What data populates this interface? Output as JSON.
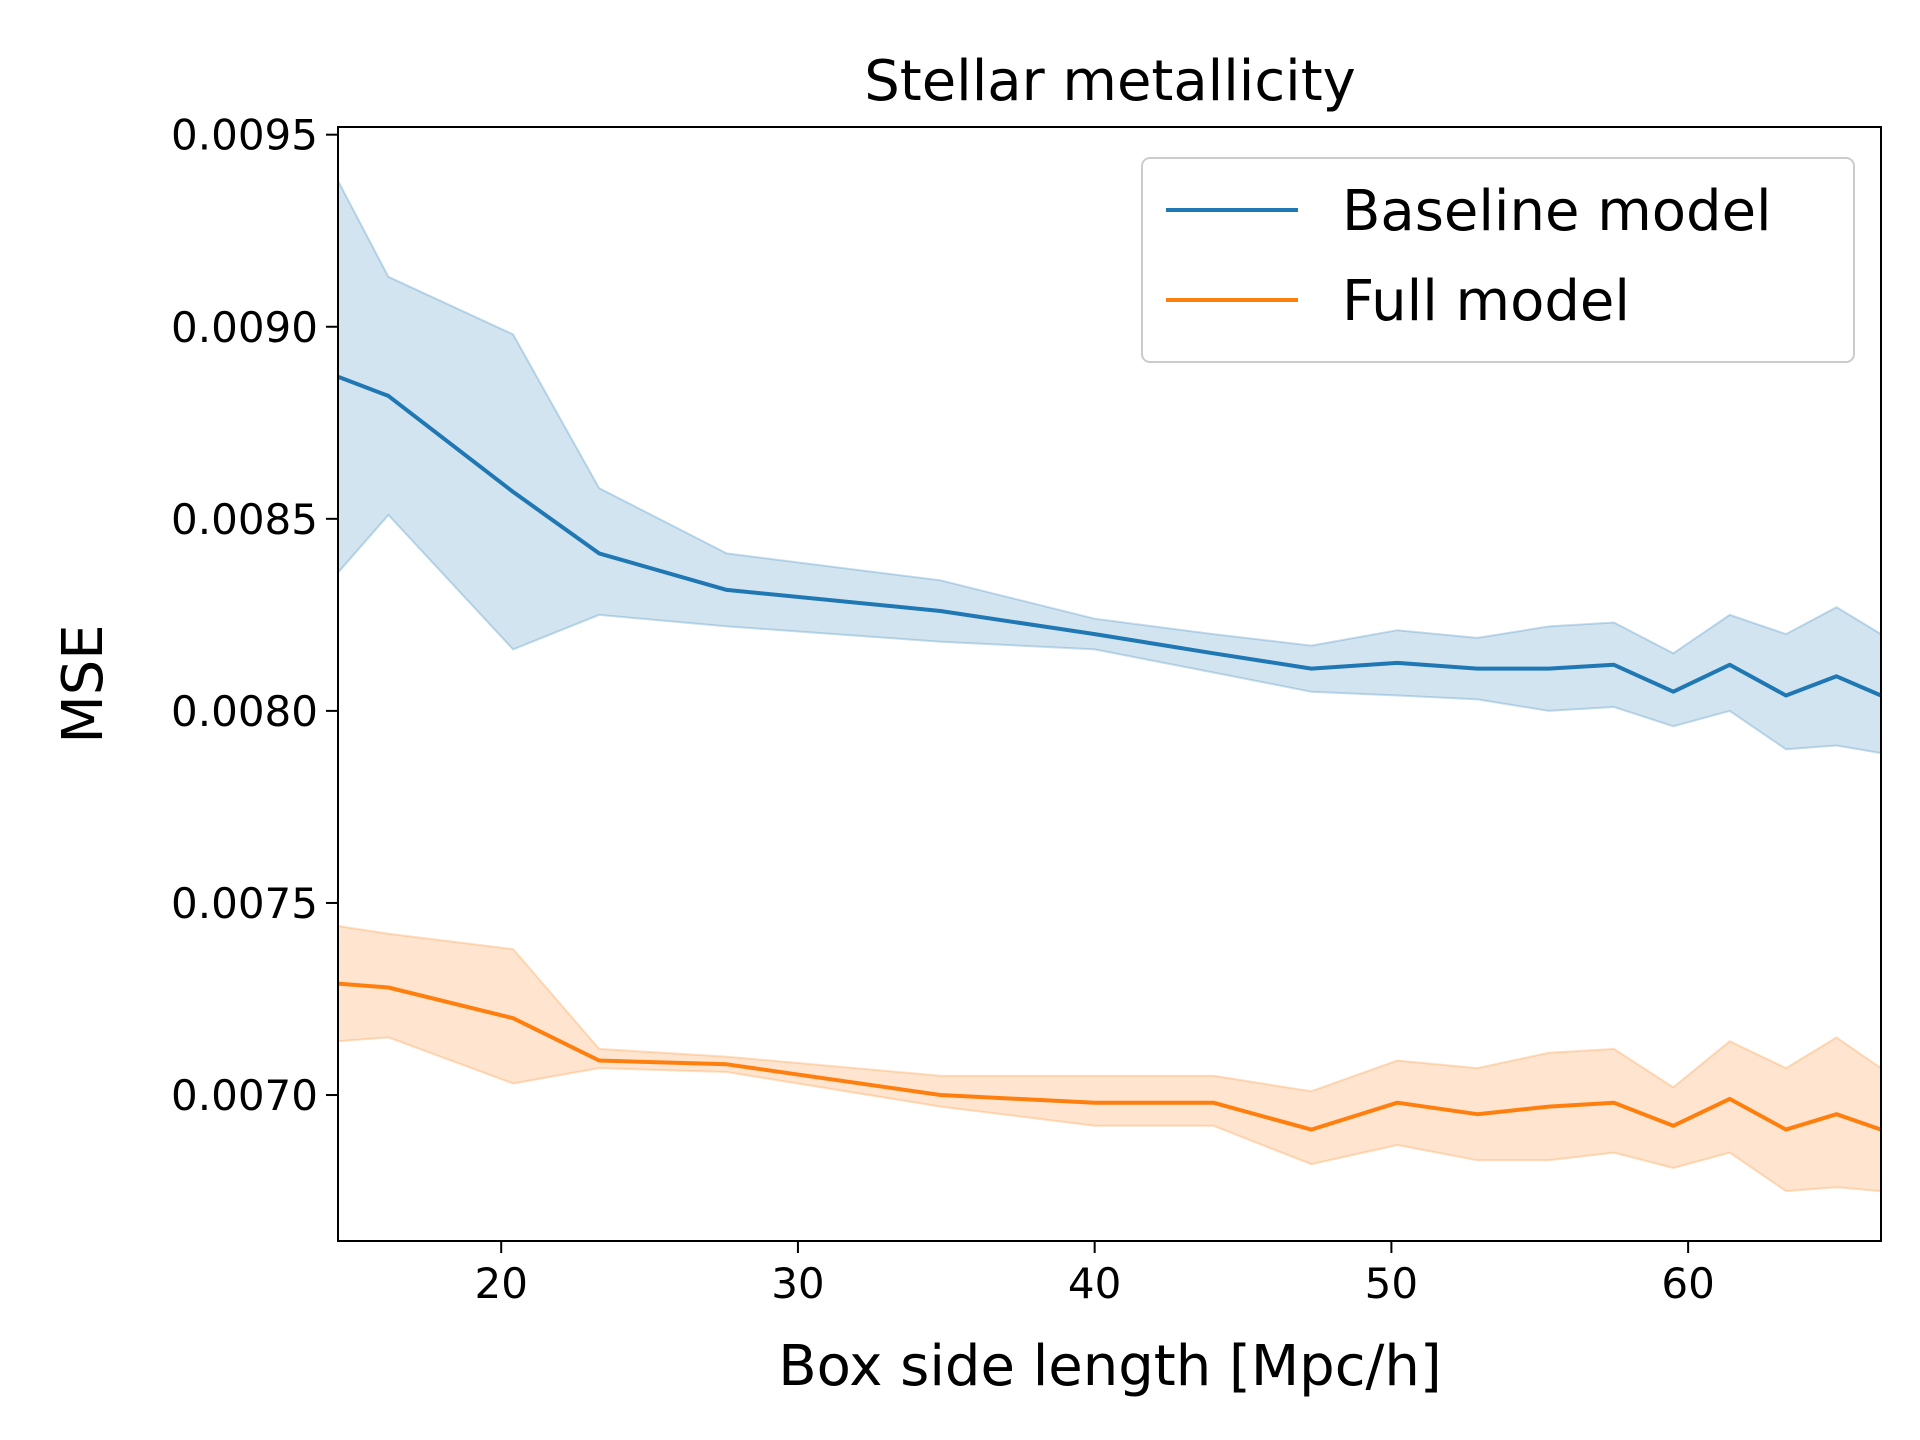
{
  "chart_data": {
    "type": "line",
    "title": "Stellar metallicity",
    "xlabel": "Box side length [Mpc/h]",
    "ylabel": "MSE",
    "xlim": [
      14.5,
      66.5
    ],
    "ylim": [
      0.00662,
      0.00952
    ],
    "xticks": [
      20,
      30,
      40,
      50,
      60
    ],
    "xtick_labels": [
      "20",
      "30",
      "40",
      "50",
      "60"
    ],
    "yticks": [
      0.007,
      0.0075,
      0.008,
      0.0085,
      0.009,
      0.0095
    ],
    "ytick_labels": [
      "0.0070",
      "0.0075",
      "0.0080",
      "0.0085",
      "0.0090",
      "0.0095"
    ],
    "legend_position": "top-right",
    "x": [
      14.5,
      16.2,
      20.4,
      23.3,
      27.6,
      34.8,
      40.0,
      44.0,
      47.3,
      50.2,
      52.9,
      55.3,
      57.5,
      59.5,
      61.4,
      63.3,
      65.0,
      66.5
    ],
    "series": [
      {
        "name": "Baseline model",
        "color": "#1f77b4",
        "band_color": "#1f77b4",
        "values": [
          0.00887,
          0.00882,
          0.00857,
          0.00841,
          0.008315,
          0.00826,
          0.0082,
          0.00815,
          0.00811,
          0.008125,
          0.00811,
          0.00811,
          0.00812,
          0.00805,
          0.00812,
          0.00804,
          0.00809,
          0.00804
        ],
        "upper": [
          0.00938,
          0.00913,
          0.00898,
          0.00858,
          0.00841,
          0.00834,
          0.00824,
          0.0082,
          0.00817,
          0.00821,
          0.00819,
          0.00822,
          0.00823,
          0.00815,
          0.00825,
          0.0082,
          0.00827,
          0.0082
        ],
        "lower": [
          0.00836,
          0.00851,
          0.00816,
          0.00825,
          0.00822,
          0.00818,
          0.00816,
          0.0081,
          0.00805,
          0.00804,
          0.00803,
          0.008,
          0.00801,
          0.00796,
          0.008,
          0.0079,
          0.00791,
          0.00789
        ]
      },
      {
        "name": "Full model",
        "color": "#ff7f0e",
        "band_color": "#ff7f0e",
        "values": [
          0.00729,
          0.00728,
          0.0072,
          0.00709,
          0.00708,
          0.007,
          0.00698,
          0.00698,
          0.00691,
          0.00698,
          0.00695,
          0.00697,
          0.00698,
          0.00692,
          0.00699,
          0.00691,
          0.00695,
          0.00691
        ],
        "upper": [
          0.00744,
          0.00742,
          0.00738,
          0.00712,
          0.0071,
          0.00705,
          0.00705,
          0.00705,
          0.00701,
          0.00709,
          0.00707,
          0.00711,
          0.00712,
          0.00702,
          0.00714,
          0.00707,
          0.00715,
          0.00707
        ],
        "lower": [
          0.00714,
          0.00715,
          0.00703,
          0.00707,
          0.00706,
          0.00697,
          0.00692,
          0.00692,
          0.00682,
          0.00687,
          0.00683,
          0.00683,
          0.00685,
          0.00681,
          0.00685,
          0.00675,
          0.00676,
          0.00675
        ]
      }
    ]
  }
}
